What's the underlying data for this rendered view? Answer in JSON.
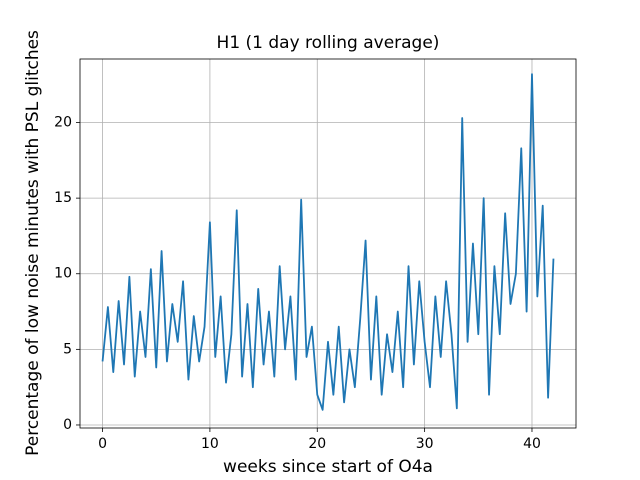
{
  "chart_data": {
    "type": "line",
    "title": "H1 (1 day rolling average)",
    "x_label": "weeks since start of O4a",
    "y_label": "Percentage of low noise minutes with PSL glitches",
    "x": [
      0,
      0.5,
      1,
      1.5,
      2,
      2.5,
      3,
      3.5,
      4,
      4.5,
      5,
      5.5,
      6,
      6.5,
      7,
      7.5,
      8,
      8.5,
      9,
      9.5,
      10,
      10.5,
      11,
      11.5,
      12,
      12.5,
      13,
      13.5,
      14,
      14.5,
      15,
      15.5,
      16,
      16.5,
      17,
      17.5,
      18,
      18.5,
      19,
      19.5,
      20,
      20.5,
      21,
      21.5,
      22,
      22.5,
      23,
      23.5,
      24,
      24.5,
      25,
      25.5,
      26,
      26.5,
      27,
      27.5,
      28,
      28.5,
      29,
      29.5,
      30,
      30.5,
      31,
      31.5,
      32,
      32.5,
      33,
      33.5,
      34,
      34.5,
      35,
      35.5,
      36,
      36.5,
      37,
      37.5,
      38,
      38.5,
      39,
      39.5,
      40,
      40.5,
      41,
      41.5,
      42
    ],
    "series": [
      {
        "color": "#1f77b4",
        "values": [
          4.2,
          7.8,
          3.5,
          8.2,
          4.0,
          9.8,
          3.2,
          7.5,
          4.5,
          10.3,
          3.8,
          11.5,
          4.2,
          8.0,
          5.5,
          9.5,
          3.0,
          7.2,
          4.2,
          6.5,
          13.4,
          4.5,
          8.5,
          2.8,
          6.0,
          14.2,
          3.2,
          8.0,
          2.5,
          9.0,
          4.0,
          7.5,
          3.2,
          10.5,
          5.0,
          8.5,
          3.0,
          14.9,
          4.5,
          6.5,
          2.0,
          1.0,
          5.5,
          2.0,
          6.5,
          1.5,
          5.0,
          2.5,
          7.0,
          12.2,
          3.0,
          8.5,
          2.0,
          6.0,
          3.5,
          7.5,
          2.5,
          10.5,
          4.0,
          9.5,
          5.5,
          2.5,
          8.5,
          4.5,
          9.5,
          6.0,
          1.1,
          20.3,
          5.5,
          12.0,
          6.0,
          15.0,
          2.0,
          10.5,
          6.0,
          14.0,
          8.0,
          10.0,
          18.3,
          7.5,
          23.2,
          8.5,
          14.5,
          1.8,
          11.0
        ]
      }
    ],
    "xlim": [
      -2.1,
      44.1
    ],
    "ylim": [
      -0.2,
      24.2
    ],
    "xticks": [
      0,
      10,
      20,
      30,
      40
    ],
    "yticks": [
      0,
      5,
      10,
      15,
      20
    ],
    "grid": true
  }
}
